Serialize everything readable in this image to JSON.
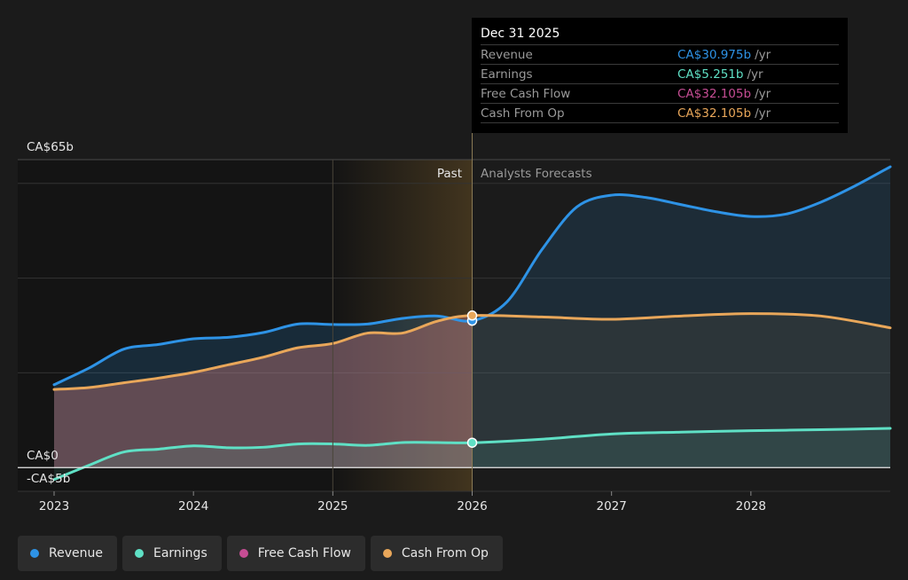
{
  "chart_data": {
    "type": "area",
    "y_top_label": "CA$65b",
    "y_zero_label": "CA$0",
    "y_bottom_label": "-CA$5b",
    "ylim": [
      -5,
      65
    ],
    "xlim": [
      2023,
      2029
    ],
    "x_ticks": [
      {
        "value": 2023,
        "label": "2023"
      },
      {
        "value": 2024,
        "label": "2024"
      },
      {
        "value": 2025,
        "label": "2025"
      },
      {
        "value": 2026,
        "label": "2026"
      },
      {
        "value": 2027,
        "label": "2027"
      },
      {
        "value": 2028,
        "label": "2028"
      }
    ],
    "past_label": "Past",
    "forecast_label": "Analysts Forecasts",
    "divider_x": 2026,
    "highlight_start_x": 2025,
    "series": [
      {
        "name": "Revenue",
        "color": "#2e93e6",
        "points": [
          [
            2023,
            17.5
          ],
          [
            2023.25,
            21
          ],
          [
            2023.5,
            25
          ],
          [
            2023.75,
            26
          ],
          [
            2024,
            27.2
          ],
          [
            2024.25,
            27.5
          ],
          [
            2024.5,
            28.5
          ],
          [
            2024.75,
            30.3
          ],
          [
            2025,
            30.2
          ],
          [
            2025.25,
            30.3
          ],
          [
            2025.5,
            31.5
          ],
          [
            2025.75,
            32
          ],
          [
            2026,
            31
          ],
          [
            2026.25,
            35
          ],
          [
            2026.5,
            46
          ],
          [
            2026.75,
            55
          ],
          [
            2027,
            57.5
          ],
          [
            2027.25,
            57
          ],
          [
            2027.5,
            55.5
          ],
          [
            2027.75,
            54
          ],
          [
            2028,
            53
          ],
          [
            2028.25,
            53.5
          ],
          [
            2028.5,
            56
          ],
          [
            2028.75,
            59.5
          ],
          [
            2029,
            63.5
          ]
        ]
      },
      {
        "name": "Earnings",
        "color": "#5fe0c5",
        "points": [
          [
            2023,
            -2.5
          ],
          [
            2023.25,
            0.5
          ],
          [
            2023.5,
            3.3
          ],
          [
            2023.75,
            3.9
          ],
          [
            2024,
            4.6
          ],
          [
            2024.25,
            4.2
          ],
          [
            2024.5,
            4.3
          ],
          [
            2024.75,
            5
          ],
          [
            2025,
            5
          ],
          [
            2025.25,
            4.7
          ],
          [
            2025.5,
            5.3
          ],
          [
            2025.75,
            5.3
          ],
          [
            2026,
            5.25
          ],
          [
            2026.5,
            6
          ],
          [
            2027,
            7.1
          ],
          [
            2027.5,
            7.5
          ],
          [
            2028,
            7.8
          ],
          [
            2028.5,
            8
          ],
          [
            2029,
            8.3
          ]
        ]
      },
      {
        "name": "Free Cash Flow",
        "color": "#c64d94",
        "points": []
      },
      {
        "name": "Cash From Op",
        "color": "#e9a75a",
        "points": [
          [
            2023,
            16.5
          ],
          [
            2023.25,
            16.9
          ],
          [
            2023.5,
            17.9
          ],
          [
            2023.75,
            18.9
          ],
          [
            2024,
            20.1
          ],
          [
            2024.25,
            21.7
          ],
          [
            2024.5,
            23.3
          ],
          [
            2024.75,
            25.3
          ],
          [
            2025,
            26.2
          ],
          [
            2025.25,
            28.4
          ],
          [
            2025.5,
            28.4
          ],
          [
            2025.75,
            30.9
          ],
          [
            2026,
            32.1
          ],
          [
            2026.5,
            31.8
          ],
          [
            2027,
            31.3
          ],
          [
            2027.5,
            32
          ],
          [
            2028,
            32.5
          ],
          [
            2028.5,
            32
          ],
          [
            2029,
            29.5
          ]
        ]
      }
    ]
  },
  "tooltip": {
    "date": "Dec 31 2025",
    "rows": [
      {
        "label": "Revenue",
        "value": "CA$30.975b",
        "unit": "/yr",
        "color": "#2e93e6"
      },
      {
        "label": "Earnings",
        "value": "CA$5.251b",
        "unit": "/yr",
        "color": "#5fe0c5"
      },
      {
        "label": "Free Cash Flow",
        "value": "CA$32.105b",
        "unit": "/yr",
        "color": "#c64d94"
      },
      {
        "label": "Cash From Op",
        "value": "CA$32.105b",
        "unit": "/yr",
        "color": "#e9a75a"
      }
    ]
  },
  "legend": [
    {
      "label": "Revenue",
      "color": "#2e93e6"
    },
    {
      "label": "Earnings",
      "color": "#5fe0c5"
    },
    {
      "label": "Free Cash Flow",
      "color": "#c64d94"
    },
    {
      "label": "Cash From Op",
      "color": "#e9a75a"
    }
  ]
}
